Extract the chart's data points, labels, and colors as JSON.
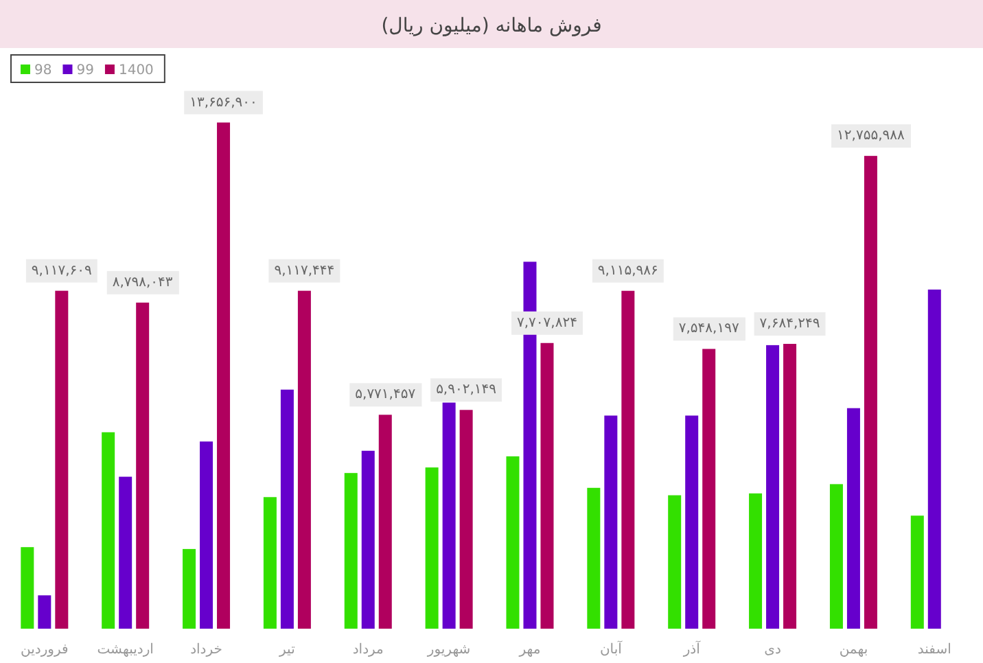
{
  "chart_data": {
    "type": "bar",
    "title": "فروش ماهانه (میلیون ریال)",
    "categories": [
      "فروردین",
      "اردیبهشت",
      "خرداد",
      "تیر",
      "مرداد",
      "شهریور",
      "مهر",
      "آبان",
      "آذر",
      "دی",
      "بهمن",
      "اسفند"
    ],
    "series": [
      {
        "name": "98",
        "color": "#33e000",
        "values": [
          2200000,
          5300000,
          2150000,
          3550000,
          4200000,
          4350000,
          4650000,
          3800000,
          3600000,
          3650000,
          3900000,
          3050000
        ]
      },
      {
        "name": "99",
        "color": "#6600cc",
        "values": [
          900000,
          4100000,
          5050000,
          6450000,
          4800000,
          6100000,
          9900000,
          5750000,
          5750000,
          7650000,
          5950000,
          9150000
        ]
      },
      {
        "name": "1400",
        "color": "#b0005e",
        "values": [
          9117609,
          8798043,
          13656900,
          9117444,
          5771457,
          5902149,
          7707824,
          9115986,
          7548197,
          7684249,
          12755988,
          null
        ],
        "value_labels": [
          "۹,۱۱۷,۶۰۹",
          "۸,۷۹۸,۰۴۳",
          "۱۳,۶۵۶,۹۰۰",
          "۹,۱۱۷,۴۴۴",
          "۵,۷۷۱,۴۵۷",
          "۵,۹۰۲,۱۴۹",
          "۷,۷۰۷,۸۲۴",
          "۹,۱۱۵,۹۸۶",
          "۷,۵۴۸,۱۹۷",
          "۷,۶۸۴,۲۴۹",
          "۱۲,۷۵۵,۹۸۸",
          null
        ]
      }
    ],
    "legend": "top left"
  }
}
